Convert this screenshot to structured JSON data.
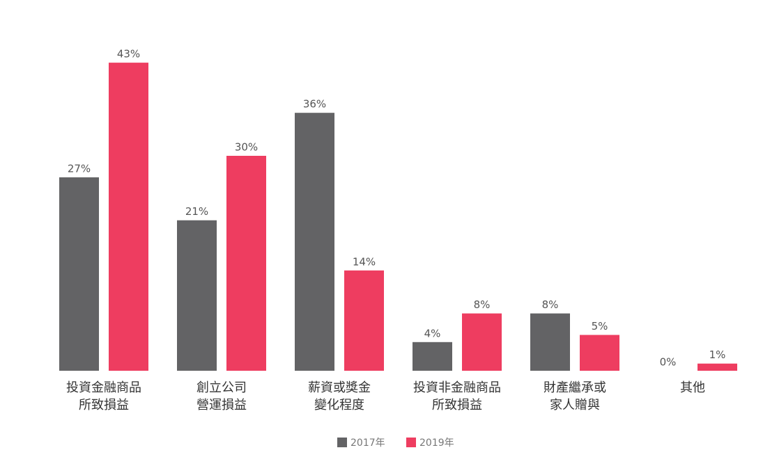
{
  "chart_data": {
    "type": "bar",
    "categories": [
      "投資金融商品\n所致損益",
      "創立公司\n營運損益",
      "薪資或獎金\n變化程度",
      "投資非金融商品\n所致損益",
      "財產繼承或\n家人贈與",
      "其他"
    ],
    "series": [
      {
        "name": "2017年",
        "color": "#636365",
        "values": [
          27,
          21,
          36,
          4,
          8,
          0
        ],
        "value_labels": [
          "27%",
          "21%",
          "36%",
          "4%",
          "8%",
          "0%"
        ]
      },
      {
        "name": "2019年",
        "color": "#ee3d60",
        "values": [
          43,
          30,
          14,
          8,
          5,
          1
        ],
        "value_labels": [
          "43%",
          "30%",
          "14%",
          "8%",
          "5%",
          "1%"
        ]
      }
    ],
    "ylim": [
      0,
      50
    ]
  }
}
